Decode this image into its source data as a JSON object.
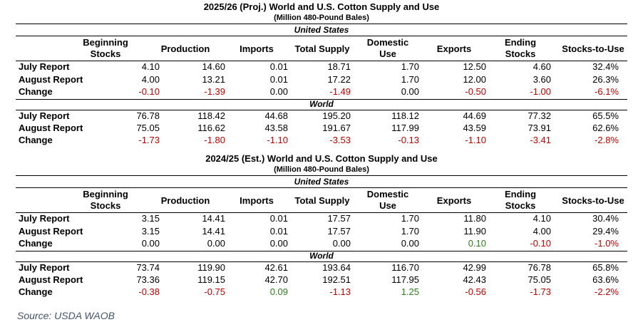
{
  "chart_data": [
    {
      "type": "table",
      "title": "2025/26 (Proj.) World and U.S. Cotton Supply and Use",
      "subtitle": "(Million 480-Pound Bales)",
      "columns": [
        "Beginning\nStocks",
        "Production",
        "Imports",
        "Total Supply",
        "Domestic\nUse",
        "Exports",
        "Ending\nStocks",
        "Stocks-to-Use"
      ],
      "sections": [
        {
          "name": "United States",
          "rows": [
            {
              "label": "July Report",
              "values": [
                "4.10",
                "14.60",
                "0.01",
                "18.71",
                "1.70",
                "12.50",
                "4.60",
                "32.4%"
              ]
            },
            {
              "label": "August Report",
              "values": [
                "4.00",
                "13.21",
                "0.01",
                "17.22",
                "1.70",
                "12.00",
                "3.60",
                "26.3%"
              ]
            },
            {
              "label": "Change",
              "values": [
                "-0.10",
                "-1.39",
                "0.00",
                "-1.49",
                "0.00",
                "-0.50",
                "-1.00",
                "-6.1%"
              ]
            }
          ]
        },
        {
          "name": "World",
          "rows": [
            {
              "label": "July Report",
              "values": [
                "76.78",
                "118.42",
                "44.68",
                "195.20",
                "118.12",
                "44.69",
                "77.32",
                "65.5%"
              ]
            },
            {
              "label": "August Report",
              "values": [
                "75.05",
                "116.62",
                "43.58",
                "191.67",
                "117.99",
                "43.59",
                "73.91",
                "62.6%"
              ]
            },
            {
              "label": "Change",
              "values": [
                "-1.73",
                "-1.80",
                "-1.10",
                "-3.53",
                "-0.13",
                "-1.10",
                "-3.41",
                "-2.8%"
              ]
            }
          ]
        }
      ]
    },
    {
      "type": "table",
      "title": "2024/25 (Est.) World and U.S. Cotton Supply and Use",
      "subtitle": "(Million 480-Pound Bales)",
      "columns": [
        "Beginning\nStocks",
        "Production",
        "Imports",
        "Total Supply",
        "Domestic\nUse",
        "Exports",
        "Ending\nStocks",
        "Stocks-to-Use"
      ],
      "sections": [
        {
          "name": "United States",
          "rows": [
            {
              "label": "July Report",
              "values": [
                "3.15",
                "14.41",
                "0.01",
                "17.57",
                "1.70",
                "11.80",
                "4.10",
                "30.4%"
              ]
            },
            {
              "label": "August Report",
              "values": [
                "3.15",
                "14.41",
                "0.01",
                "17.57",
                "1.70",
                "11.90",
                "4.00",
                "29.4%"
              ]
            },
            {
              "label": "Change",
              "values": [
                "0.00",
                "0.00",
                "0.00",
                "0.00",
                "0.00",
                "0.10",
                "-0.10",
                "-1.0%"
              ]
            }
          ]
        },
        {
          "name": "World",
          "rows": [
            {
              "label": "July Report",
              "values": [
                "73.74",
                "119.90",
                "42.61",
                "193.64",
                "116.70",
                "42.99",
                "76.78",
                "65.8%"
              ]
            },
            {
              "label": "August Report",
              "values": [
                "73.36",
                "119.15",
                "42.70",
                "192.51",
                "117.95",
                "42.43",
                "75.05",
                "63.6%"
              ]
            },
            {
              "label": "Change",
              "values": [
                "-0.38",
                "-0.75",
                "0.09",
                "-1.13",
                "1.25",
                "-0.56",
                "-1.73",
                "-2.2%"
              ]
            }
          ]
        }
      ]
    }
  ],
  "colors": {
    "negative": "#c00000",
    "positive": "#2f7d1f",
    "source": "#44546a"
  },
  "source": "Source: USDA WAOB"
}
